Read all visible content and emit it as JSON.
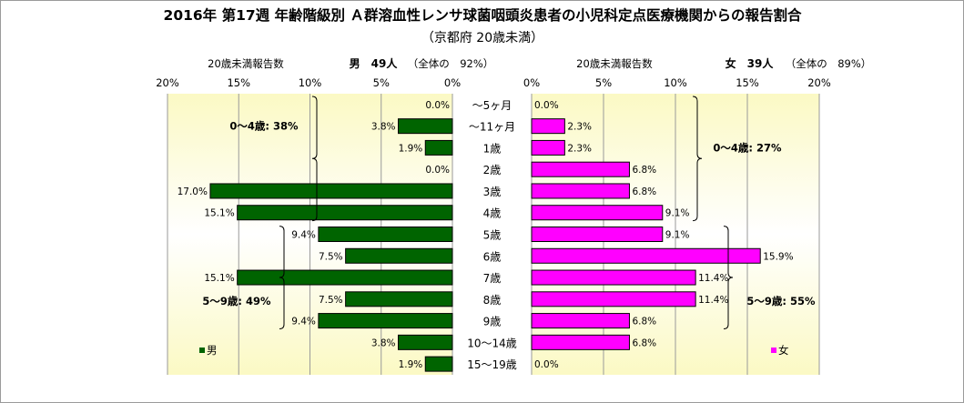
{
  "title": "2016年 第17週 年齢階級別 Ａ群溶血性レンサ球菌咽頭炎患者の小児科定点医療機関からの報告割合",
  "subtitle": "（京都府 20歳未満）",
  "colors": {
    "male": "#006400",
    "female": "#ff00ff",
    "panel_edge": "#fbf9c4",
    "panel_mid": "#ffffff"
  },
  "chart_data": {
    "type": "bar",
    "orientation": "horizontal",
    "categories": [
      "～5ヶ月",
      "～11ヶ月",
      "1歳",
      "2歳",
      "3歳",
      "4歳",
      "5歳",
      "6歳",
      "7歳",
      "8歳",
      "9歳",
      "10～14歳",
      "15～19歳"
    ],
    "xlim": [
      0,
      20
    ],
    "ticks": [
      "20%",
      "15%",
      "10%",
      "5%",
      "0%"
    ],
    "ticks_female": [
      "0%",
      "5%",
      "10%",
      "15%",
      "20%"
    ],
    "grid": true,
    "series": [
      {
        "name": "男",
        "header_label": "20歳未満報告数",
        "header_count": "男　49人",
        "header_share": "（全体の　92%）",
        "values": [
          0.0,
          3.8,
          1.9,
          0.0,
          17.0,
          15.1,
          9.4,
          7.5,
          15.1,
          7.5,
          9.4,
          3.8,
          1.9
        ],
        "value_labels": [
          "0.0%",
          "3.8%",
          "1.9%",
          "0.0%",
          "17.0%",
          "15.1%",
          "9.4%",
          "7.5%",
          "15.1%",
          "7.5%",
          "9.4%",
          "3.8%",
          "1.9%"
        ],
        "legend": "男",
        "group_annotations": [
          {
            "label": "0～4歳: 38%",
            "from": 0,
            "to": 5
          },
          {
            "label": "5～9歳: 49%",
            "from": 6,
            "to": 10
          }
        ]
      },
      {
        "name": "女",
        "header_label": "20歳未満報告数",
        "header_count": "女　39人",
        "header_share": "（全体の　89%）",
        "values": [
          0.0,
          2.3,
          2.3,
          6.8,
          6.8,
          9.1,
          9.1,
          15.9,
          11.4,
          11.4,
          6.8,
          6.8,
          0.0
        ],
        "value_labels": [
          "0.0%",
          "2.3%",
          "2.3%",
          "6.8%",
          "6.8%",
          "9.1%",
          "9.1%",
          "15.9%",
          "11.4%",
          "11.4%",
          "6.8%",
          "6.8%",
          "0.0%"
        ],
        "legend": "女",
        "group_annotations": [
          {
            "label": "0～4歳: 27%",
            "from": 0,
            "to": 5
          },
          {
            "label": "5～9歳: 55%",
            "from": 6,
            "to": 10
          }
        ]
      }
    ]
  }
}
